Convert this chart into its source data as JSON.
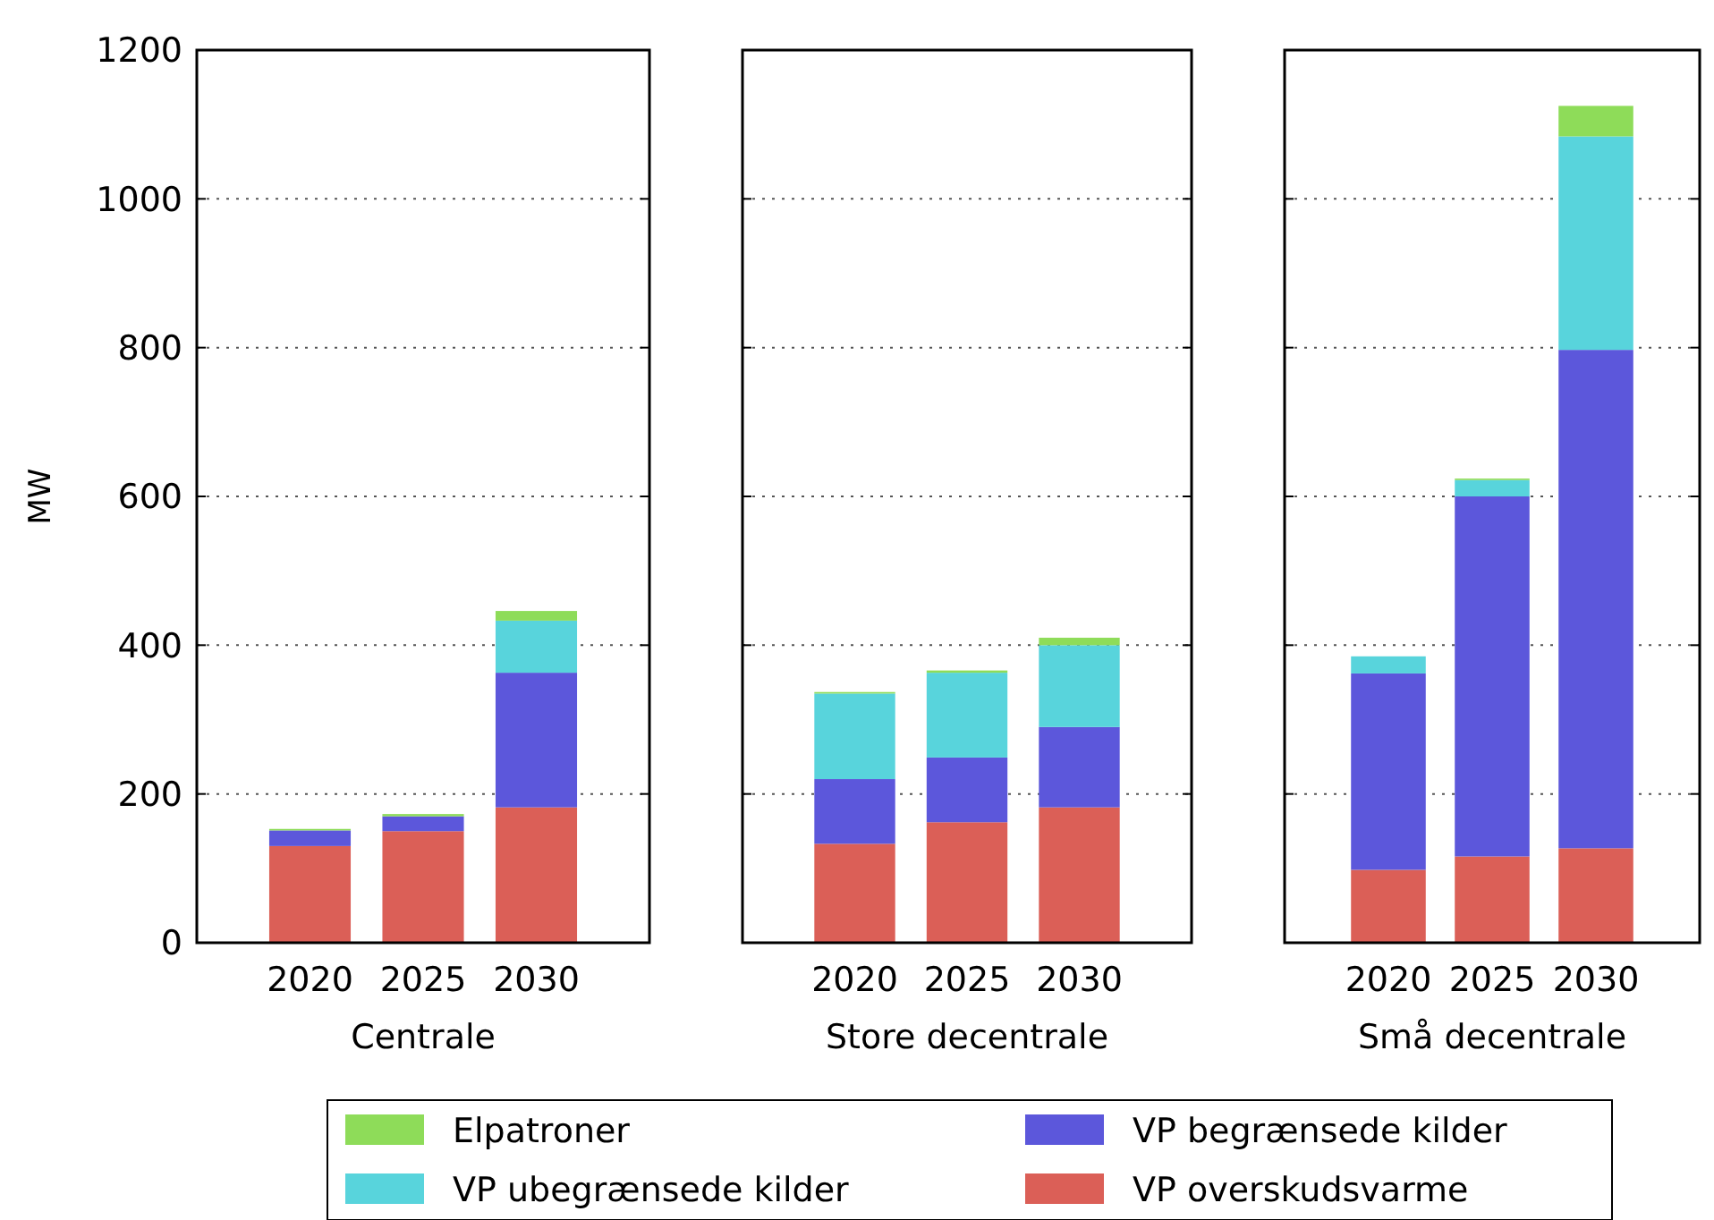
{
  "chart_data": [
    {
      "type": "bar",
      "stacked": true,
      "xlabel": "Centrale",
      "ylabel": "MW",
      "categories": [
        "2020",
        "2025",
        "2030"
      ],
      "ylim": [
        0,
        1200
      ],
      "yticks": [
        0,
        200,
        400,
        600,
        800,
        1000,
        1200
      ],
      "grid": "y",
      "legend": "bottom",
      "series": [
        {
          "name": "VP overskudsvarme",
          "color": "#db5f57",
          "values": [
            130,
            150,
            182
          ]
        },
        {
          "name": "VP begrænsede kilder",
          "color": "#5c57db",
          "values": [
            21,
            20,
            181
          ]
        },
        {
          "name": "VP ubegrænsede kilder",
          "color": "#58d4dc",
          "values": [
            0,
            0,
            70
          ]
        },
        {
          "name": "Elpatroner",
          "color": "#8edc59",
          "values": [
            2,
            3,
            13
          ]
        }
      ]
    },
    {
      "type": "bar",
      "stacked": true,
      "xlabel": "Store decentrale",
      "categories": [
        "2020",
        "2025",
        "2030"
      ],
      "ylim": [
        0,
        1200
      ],
      "yticks": [
        0,
        200,
        400,
        600,
        800,
        1000,
        1200
      ],
      "grid": "y",
      "tick_labels": "x",
      "series": [
        {
          "color": "#db5f57",
          "values": [
            133,
            162,
            182
          ]
        },
        {
          "color": "#5c57db",
          "values": [
            87,
            87,
            108
          ]
        },
        {
          "color": "#58d4dc",
          "values": [
            115,
            114,
            110
          ]
        },
        {
          "color": "#8edc59",
          "values": [
            2,
            3,
            10
          ]
        }
      ]
    },
    {
      "type": "bar",
      "stacked": true,
      "xlabel": "Små decentrale",
      "categories": [
        "2020",
        "2025",
        "2030"
      ],
      "ylim": [
        0,
        1200
      ],
      "yticks": [
        0,
        200,
        400,
        600,
        800,
        1000,
        1200
      ],
      "grid": "y",
      "tick_labels": "x",
      "series": [
        {
          "color": "#db5f57",
          "values": [
            98,
            116,
            127
          ]
        },
        {
          "color": "#5c57db",
          "values": [
            264,
            484,
            670
          ]
        },
        {
          "color": "#58d4dc",
          "values": [
            23,
            22,
            287
          ]
        },
        {
          "color": "#8edc59",
          "values": [
            0,
            2,
            41
          ]
        }
      ]
    }
  ]
}
